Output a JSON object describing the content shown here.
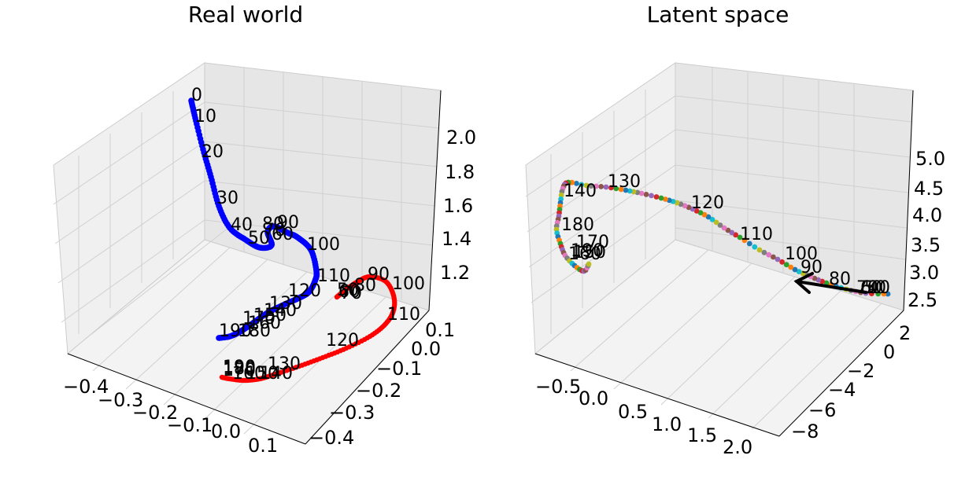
{
  "chart_data": [
    {
      "type": "scatter",
      "title": "Real world",
      "xlabel": "",
      "ylabel": "",
      "zlabel": "",
      "x_ticks": [
        "−0.4",
        "−0.3",
        "−0.2",
        "−0.1",
        "0.0",
        "0.1"
      ],
      "y_ticks": [
        "0.1",
        "0.0",
        "−0.1",
        "−0.2",
        "−0.3",
        "−0.4"
      ],
      "z_ticks": [
        "2.0",
        "1.8",
        "1.6",
        "1.4",
        "1.2"
      ],
      "grid": true,
      "series": [
        {
          "color": "#0000ff",
          "point_labels": [
            "0",
            "10",
            "20",
            "30",
            "40",
            "50",
            "60",
            "70",
            "80",
            "90",
            "100",
            "110",
            "120",
            "130",
            "140",
            "150",
            "160",
            "170",
            "180",
            "190"
          ]
        },
        {
          "color": "#ff0000",
          "point_labels": [
            "50",
            "60",
            "70",
            "80",
            "90",
            "100",
            "110",
            "120",
            "130",
            "140",
            "150",
            "160",
            "170",
            "180",
            "190"
          ]
        }
      ]
    },
    {
      "type": "scatter",
      "title": "Latent space",
      "xlabel": "",
      "ylabel": "",
      "zlabel": "",
      "x_ticks": [
        "−0.5",
        "0.0",
        "0.5",
        "1.0",
        "1.5",
        "2.0"
      ],
      "y_ticks": [
        "2",
        "0",
        "−2",
        "−4",
        "−6",
        "−8"
      ],
      "z_ticks": [
        "5.0",
        "4.5",
        "4.0",
        "3.5",
        "3.0",
        "2.5"
      ],
      "grid": true,
      "series": [
        {
          "color": "multicolor",
          "point_labels": [
            "130",
            "140",
            "180",
            "170",
            "160",
            "150",
            "190",
            "120",
            "110",
            "100",
            "90",
            "80",
            "70",
            "60",
            "50",
            "40"
          ]
        }
      ],
      "arrow_color": "#000000"
    }
  ]
}
